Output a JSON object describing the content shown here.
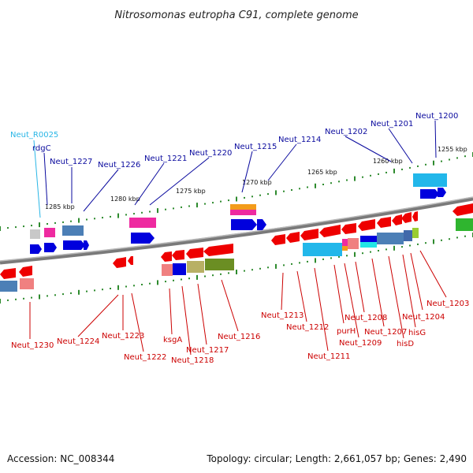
{
  "title": "Nitrosomonas eutropha C91, complete genome",
  "footer": {
    "accession": "Accession: NC_008344",
    "summary": "Topology: circular; Length: 2,661,057 bp; Genes: 2,490"
  },
  "colors": {
    "forward_label": "#0a0a9e",
    "reverse_label": "#cc0000",
    "rna_label": "#29b6e6",
    "backbone": "#7a7a7a",
    "tick": "#2e8b2e"
  },
  "scale": {
    "unit": "kbp",
    "tick_labels": [
      "1285 kbp",
      "1280 kbp",
      "1275 kbp",
      "1270 kbp",
      "1265 kbp",
      "1260 kbp",
      "1255 kbp"
    ]
  },
  "features": {
    "forward_labels": [
      "Neut_R0025",
      "rdgC",
      "Neut_1227",
      "Neut_1226",
      "Neut_1221",
      "Neut_1220",
      "Neut_1215",
      "Neut_1214",
      "Neut_1202",
      "Neut_1201",
      "Neut_1200"
    ],
    "reverse_labels": [
      "Neut_1230",
      "Neut_1224",
      "Neut_1223",
      "Neut_1222",
      "ksgA",
      "Neut_1218",
      "Neut_1217",
      "Neut_1216",
      "Neut_1213",
      "Neut_1212",
      "Neut_1211",
      "purH",
      "Neut_1209",
      "Neut_1208",
      "Neut_1207",
      "hisD",
      "hisG",
      "Neut_1204",
      "Neut_1203"
    ]
  }
}
